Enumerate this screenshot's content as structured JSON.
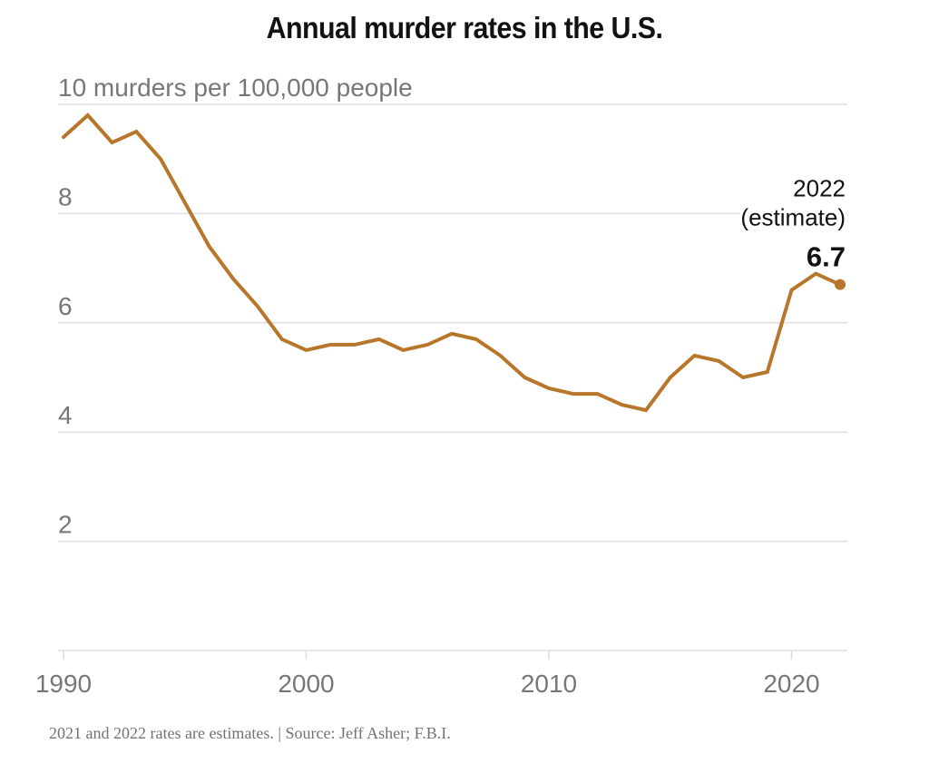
{
  "chart_data": {
    "type": "line",
    "title": "Annual murder rates in the U.S.",
    "ylabel": "murders per 100,000 people",
    "xlabel": "",
    "ylim": [
      0,
      10
    ],
    "xlim": [
      1990,
      2022
    ],
    "grid": true,
    "y_ticks": [
      {
        "value": 10,
        "label": "10 murders per 100,000 people"
      },
      {
        "value": 8,
        "label": "8"
      },
      {
        "value": 6,
        "label": "6"
      },
      {
        "value": 4,
        "label": "4"
      },
      {
        "value": 2,
        "label": "2"
      }
    ],
    "x_ticks": [
      {
        "value": 1990,
        "label": "1990"
      },
      {
        "value": 2000,
        "label": "2000"
      },
      {
        "value": 2010,
        "label": "2010"
      },
      {
        "value": 2020,
        "label": "2020"
      }
    ],
    "series": [
      {
        "name": "Murder rate",
        "color": "#B8762B",
        "x": [
          1990,
          1991,
          1992,
          1993,
          1994,
          1995,
          1996,
          1997,
          1998,
          1999,
          2000,
          2001,
          2002,
          2003,
          2004,
          2005,
          2006,
          2007,
          2008,
          2009,
          2010,
          2011,
          2012,
          2013,
          2014,
          2015,
          2016,
          2017,
          2018,
          2019,
          2020,
          2021,
          2022
        ],
        "values": [
          9.4,
          9.8,
          9.3,
          9.5,
          9.0,
          8.2,
          7.4,
          6.8,
          6.3,
          5.7,
          5.5,
          5.6,
          5.6,
          5.7,
          5.5,
          5.6,
          5.8,
          5.7,
          5.4,
          5.0,
          4.8,
          4.7,
          4.7,
          4.5,
          4.4,
          5.0,
          5.4,
          5.3,
          5.0,
          5.1,
          6.6,
          6.9,
          6.7
        ]
      }
    ],
    "annotation": {
      "x": 2022,
      "value": 6.7,
      "line1": "2022",
      "line2": "(estimate)",
      "value_label": "6.7"
    },
    "footer": "2021 and 2022 rates are estimates. | Source: Jeff Asher; F.B.I."
  }
}
